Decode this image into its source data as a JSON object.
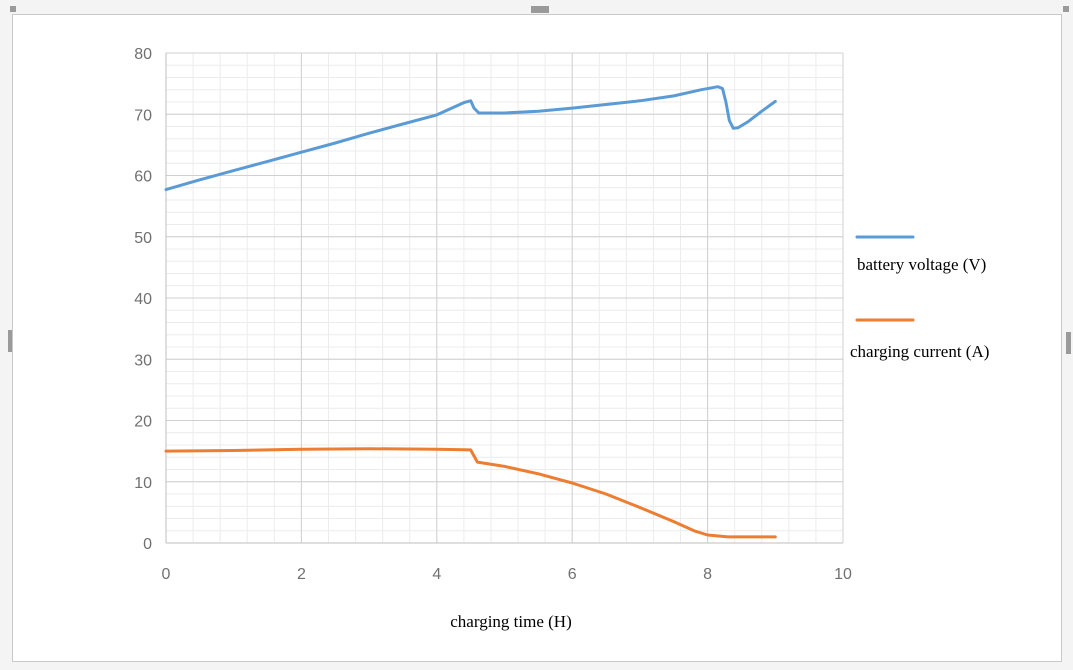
{
  "chart_data": {
    "type": "line",
    "title": "",
    "xlabel": "charging time (H)",
    "ylabel": "",
    "xlim": [
      0,
      10
    ],
    "ylim": [
      0,
      80
    ],
    "x_ticks": [
      0,
      2,
      4,
      6,
      8,
      10
    ],
    "y_ticks": [
      0,
      10,
      20,
      30,
      40,
      50,
      60,
      70,
      80
    ],
    "grid": true,
    "minor_grid": true,
    "legend_position": "right",
    "series": [
      {
        "name": "battery voltage (V)",
        "color": "#5b9bd5",
        "x": [
          0,
          0.5,
          1,
          1.5,
          2,
          2.5,
          3,
          3.5,
          4,
          4.4,
          4.5,
          4.55,
          4.62,
          5,
          5.5,
          6,
          6.5,
          7,
          7.5,
          7.9,
          8.15,
          8.22,
          8.27,
          8.32,
          8.38,
          8.45,
          8.6,
          8.8,
          9.0
        ],
        "y": [
          57.7,
          59.3,
          60.8,
          62.3,
          63.8,
          65.3,
          66.9,
          68.4,
          69.9,
          71.9,
          72.2,
          71.0,
          70.2,
          70.2,
          70.5,
          71.0,
          71.6,
          72.2,
          73.0,
          74.0,
          74.5,
          74.2,
          72.0,
          69.0,
          67.7,
          67.8,
          68.8,
          70.5,
          72.1
        ]
      },
      {
        "name": "charging current (A)",
        "color": "#ed7d31",
        "x": [
          0,
          1,
          2,
          3,
          4,
          4.5,
          4.6,
          5,
          5.5,
          6,
          6.5,
          7,
          7.5,
          7.8,
          8.0,
          8.2,
          8.3,
          8.5,
          9.0
        ],
        "y": [
          15.0,
          15.1,
          15.3,
          15.4,
          15.3,
          15.2,
          13.2,
          12.5,
          11.3,
          9.8,
          8.0,
          5.8,
          3.5,
          2.0,
          1.3,
          1.1,
          1.0,
          1.0,
          1.0
        ]
      }
    ]
  }
}
